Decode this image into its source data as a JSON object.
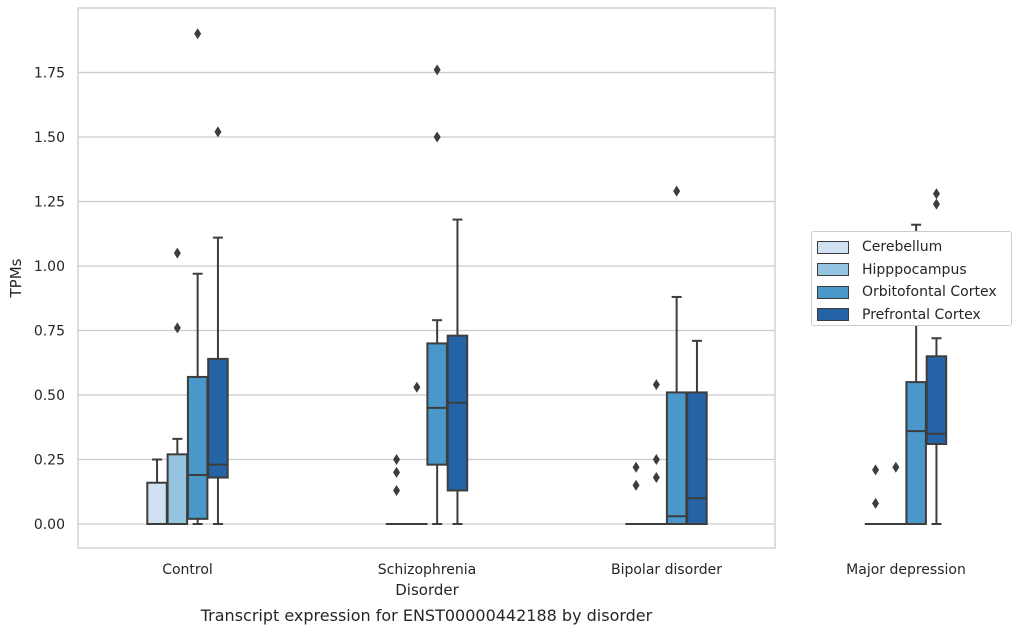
{
  "chart_data": {
    "type": "box",
    "caption": "Transcript expression for ENST00000442188 by disorder",
    "xlabel": "Disorder",
    "ylabel": "TPMs",
    "ylim": [
      -0.09,
      1.99
    ],
    "yticks": [
      "0.00",
      "0.25",
      "0.50",
      "0.75",
      "1.00",
      "1.25",
      "1.50",
      "1.75"
    ],
    "grid": "horizontal",
    "legend_position": "right",
    "categories": [
      "Control",
      "Schizophrenia",
      "Bipolar disorder",
      "Major depression"
    ],
    "series": [
      {
        "name": "Cerebellum",
        "color": "#d0e1f2",
        "boxes": [
          {
            "min": 0,
            "q1": 0,
            "median": 0,
            "q3": 0.16,
            "max": 0.25,
            "outliers": []
          },
          {
            "min": 0,
            "q1": 0,
            "median": 0,
            "q3": 0,
            "max": 0,
            "outliers": [
              0.13,
              0.2,
              0.25
            ]
          },
          {
            "min": 0,
            "q1": 0,
            "median": 0,
            "q3": 0,
            "max": 0,
            "outliers": [
              0.15,
              0.22
            ]
          },
          {
            "min": 0,
            "q1": 0,
            "median": 0,
            "q3": 0,
            "max": 0,
            "outliers": [
              0.08,
              0.21
            ]
          }
        ]
      },
      {
        "name": "Hipppocampus",
        "color": "#94c4df",
        "boxes": [
          {
            "min": 0,
            "q1": 0,
            "median": 0,
            "q3": 0.27,
            "max": 0.33,
            "outliers": [
              0.76,
              1.05
            ]
          },
          {
            "min": 0,
            "q1": 0,
            "median": 0,
            "q3": 0,
            "max": 0,
            "outliers": [
              0.53
            ]
          },
          {
            "min": 0,
            "q1": 0,
            "median": 0,
            "q3": 0,
            "max": 0,
            "outliers": [
              0.18,
              0.25,
              0.54
            ]
          },
          {
            "min": 0,
            "q1": 0,
            "median": 0,
            "q3": 0,
            "max": 0,
            "outliers": [
              0.22,
              1.03
            ]
          }
        ]
      },
      {
        "name": "Orbitofontal Cortex",
        "color": "#4a98c9",
        "boxes": [
          {
            "min": 0,
            "q1": 0.02,
            "median": 0.19,
            "q3": 0.57,
            "max": 0.97,
            "outliers": [
              1.9
            ]
          },
          {
            "min": 0,
            "q1": 0.23,
            "median": 0.45,
            "q3": 0.7,
            "max": 0.79,
            "outliers": [
              1.5,
              1.76
            ]
          },
          {
            "min": 0,
            "q1": 0,
            "median": 0.03,
            "q3": 0.51,
            "max": 0.88,
            "outliers": [
              1.29
            ]
          },
          {
            "min": 0,
            "q1": 0,
            "median": 0.36,
            "q3": 0.55,
            "max": 1.16,
            "outliers": []
          }
        ]
      },
      {
        "name": "Prefrontal Cortex",
        "color": "#2464a6",
        "boxes": [
          {
            "min": 0,
            "q1": 0.18,
            "median": 0.23,
            "q3": 0.64,
            "max": 1.11,
            "outliers": [
              1.52
            ]
          },
          {
            "min": 0,
            "q1": 0.13,
            "median": 0.47,
            "q3": 0.73,
            "max": 1.18,
            "outliers": []
          },
          {
            "min": 0,
            "q1": 0,
            "median": 0.1,
            "q3": 0.51,
            "max": 0.71,
            "outliers": []
          },
          {
            "min": 0,
            "q1": 0.31,
            "median": 0.35,
            "q3": 0.65,
            "max": 0.72,
            "outliers": [
              1.24,
              1.28
            ]
          }
        ]
      }
    ]
  }
}
